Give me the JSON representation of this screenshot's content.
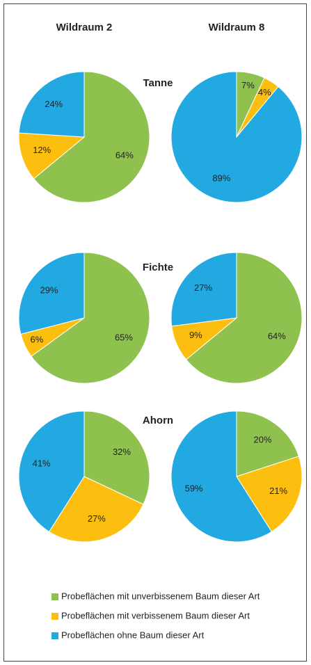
{
  "columns": [
    "Wildraum 2",
    "Wildraum 8"
  ],
  "rows": [
    "Tanne",
    "Fichte",
    "Ahorn"
  ],
  "legend": [
    {
      "name": "Probeflächen mit unverbissenem Baum dieser Art",
      "color": "#8fc14f"
    },
    {
      "name": "Probeflächen mit verbissenem Baum dieser Art",
      "color": "#fdbf0f"
    },
    {
      "name": "Probeflächen ohne Baum dieser Art",
      "color": "#23a9e1"
    }
  ],
  "chart_data": [
    {
      "type": "pie",
      "values": [
        64,
        12,
        24
      ],
      "value_labels": [
        "64%",
        "12%",
        "24%"
      ]
    },
    {
      "type": "pie",
      "values": [
        7,
        4,
        89
      ],
      "value_labels": [
        "7%",
        "4%",
        "89%"
      ]
    },
    {
      "type": "pie",
      "values": [
        65,
        6,
        29
      ],
      "value_labels": [
        "65%",
        "6%",
        "29%"
      ]
    },
    {
      "type": "pie",
      "values": [
        64,
        9,
        27
      ],
      "value_labels": [
        "64%",
        "9%",
        "27%"
      ]
    },
    {
      "type": "pie",
      "values": [
        32,
        27,
        41
      ],
      "value_labels": [
        "32%",
        "27%",
        "41%"
      ]
    },
    {
      "type": "pie",
      "values": [
        20,
        21,
        59
      ],
      "value_labels": [
        "20%",
        "21%",
        "59%"
      ]
    }
  ]
}
